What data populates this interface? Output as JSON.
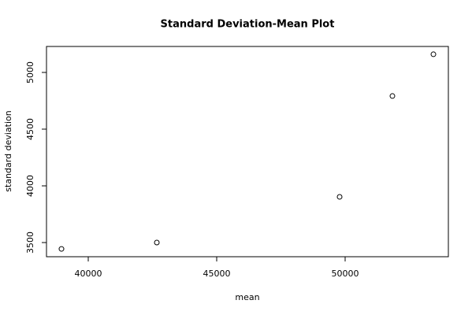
{
  "chart_data": {
    "type": "scatter",
    "title": "Standard Deviation-Mean Plot",
    "x_label": "mean",
    "y_label": "standard deviation",
    "x": [
      38957,
      42669,
      49785,
      51840,
      53436
    ],
    "values": [
      3444,
      3500,
      3903,
      4792,
      5160
    ],
    "color": "#000000",
    "xlim": [
      38374,
      54018
    ],
    "xticks": [
      40000,
      45000,
      50000
    ],
    "ylim": [
      3375,
      5229
    ],
    "yticks": [
      3500,
      4000,
      4500,
      5000
    ]
  }
}
